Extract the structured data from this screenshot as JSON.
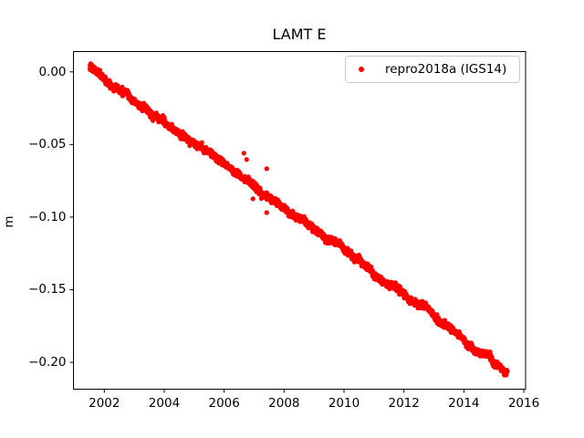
{
  "figure": {
    "title": "LAMT E",
    "ylabel": "m",
    "background_color": "#ffffff",
    "spine_color": "#000000",
    "tick_color": "#000000"
  },
  "axes": {
    "xlim": [
      2000.97,
      2016.06
    ],
    "ylim": [
      -0.2185,
      0.014
    ],
    "x_ticks": {
      "values": [
        2002,
        2004,
        2006,
        2008,
        2010,
        2012,
        2014,
        2016
      ],
      "labels": [
        "2002",
        "2004",
        "2006",
        "2008",
        "2010",
        "2012",
        "2014",
        "2016"
      ]
    },
    "y_ticks": {
      "values": [
        0.0,
        -0.05,
        -0.1,
        -0.15,
        -0.2
      ],
      "labels": [
        "0.00",
        "−0.05",
        "−0.10",
        "−0.15",
        "−0.20"
      ]
    },
    "grid": false
  },
  "legend": {
    "label": "repro2018a (IGS14)",
    "marker_color": "#ff0000",
    "border_color": "#cccccc",
    "position": "upper right"
  },
  "chart_data": {
    "type": "scatter",
    "title": "LAMT E",
    "xlabel": "",
    "ylabel": "m",
    "xlim": [
      2000.97,
      2016.06
    ],
    "ylim": [
      -0.2185,
      0.014
    ],
    "grid": false,
    "legend_position": "upper right",
    "series": [
      {
        "name": "repro2018a (IGS14)",
        "color": "#ff0000",
        "marker": "dot",
        "marker_radius_px": 2.6,
        "trend": {
          "t_start": 2001.52,
          "t_end": 2015.45,
          "v_start": 0.0035,
          "v_end": -0.2055,
          "slope_m_per_yr": -0.015
        },
        "sample_trend_points": {
          "x": [
            2001.52,
            2002,
            2003,
            2004,
            2005,
            2006,
            2007,
            2008,
            2009,
            2010,
            2011,
            2012,
            2013,
            2014,
            2015,
            2015.45
          ],
          "y": [
            0.0035,
            -0.0037,
            -0.0187,
            -0.0337,
            -0.0487,
            -0.0637,
            -0.0787,
            -0.0937,
            -0.1087,
            -0.1237,
            -0.1387,
            -0.1537,
            -0.1687,
            -0.1837,
            -0.1987,
            -0.2055
          ]
        },
        "n_points": 2600,
        "noise_sd": 0.0011,
        "walk_step": 0.00055,
        "seasonal": [
          {
            "period_yr": 1.0,
            "amp": 0.0008
          },
          {
            "period_yr": 0.31,
            "amp": 0.0005
          }
        ],
        "outliers": {
          "x": [
            2006.66,
            2006.75,
            2007.42,
            2006.96,
            2007.42
          ],
          "y": [
            -0.056,
            -0.0604,
            -0.0667,
            -0.0874,
            -0.0969
          ]
        }
      }
    ]
  }
}
